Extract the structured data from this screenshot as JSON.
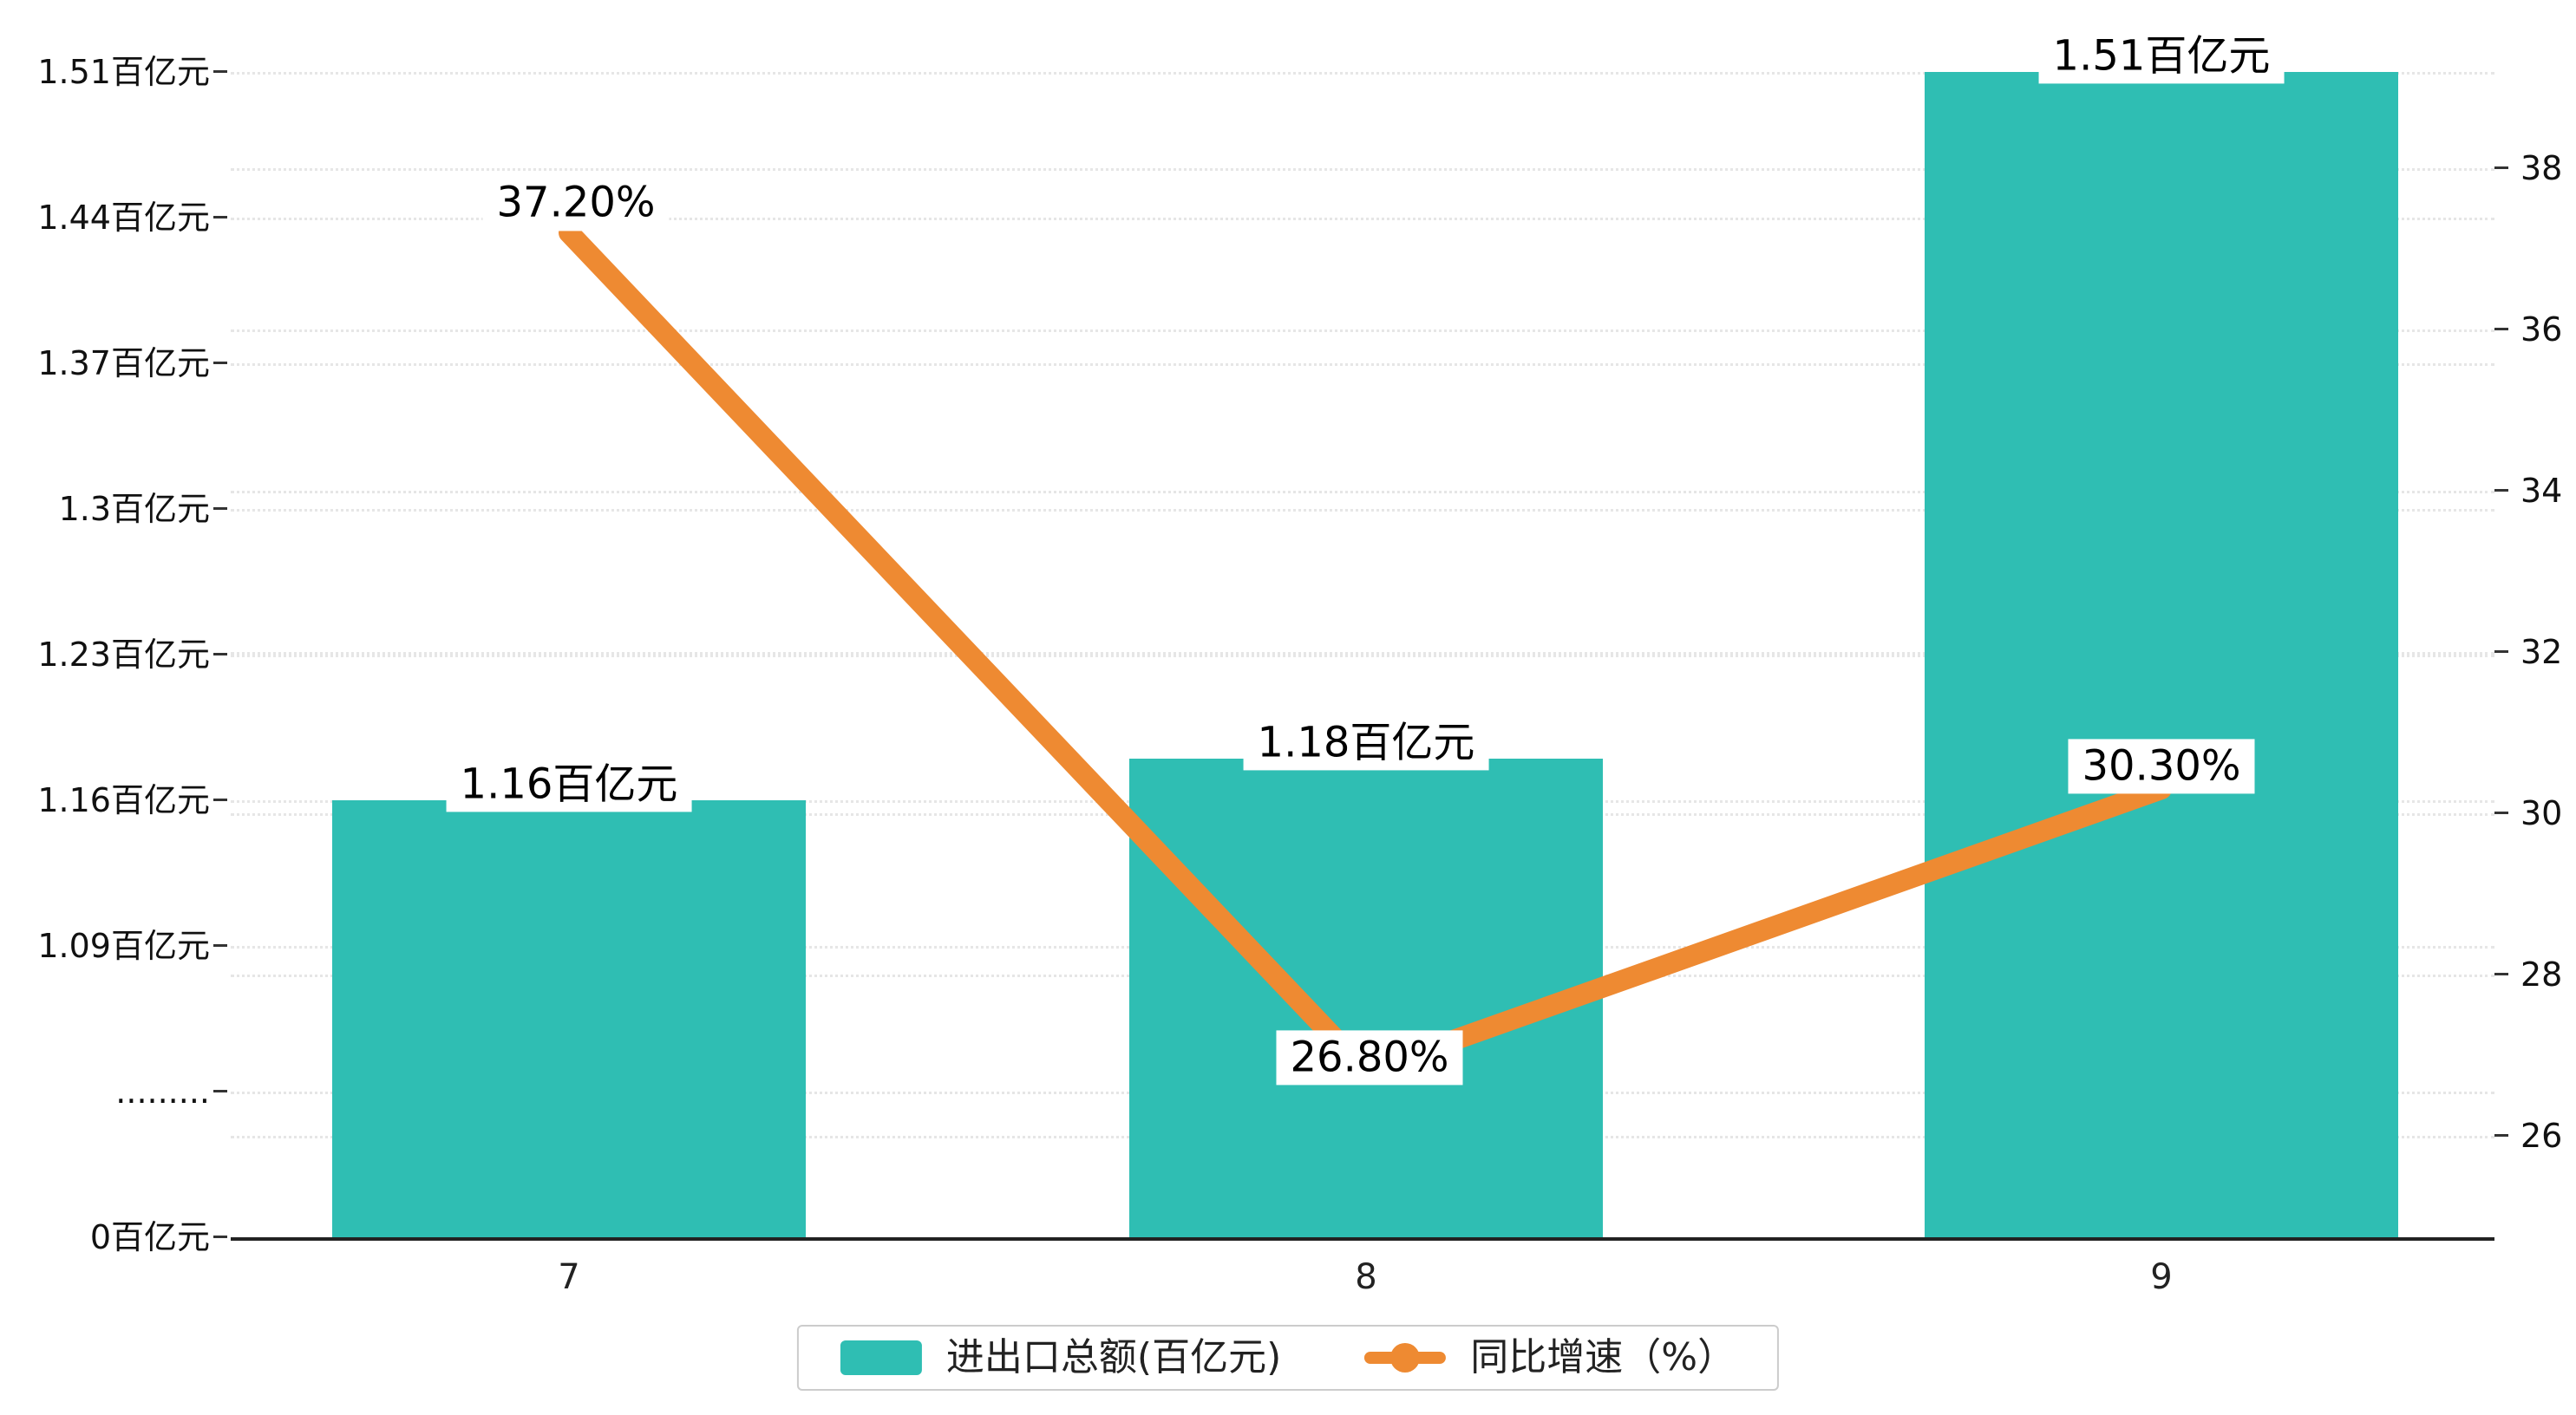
{
  "chart_data": {
    "type": "bar",
    "subtype": "bar+line combo, dual y-axis",
    "categories": [
      "7",
      "8",
      "9"
    ],
    "series": [
      {
        "name": "进出口总额(百亿元)",
        "type": "bar",
        "axis": "left",
        "values": [
          1.16,
          1.18,
          1.51
        ],
        "labels": [
          "1.16百亿元",
          "1.18百亿元",
          "1.51百亿元"
        ],
        "color": "#2fbeb3"
      },
      {
        "name": "同比增速（%）",
        "type": "line",
        "axis": "right",
        "values": [
          37.2,
          26.8,
          30.3
        ],
        "labels": [
          "37.20%",
          "26.80%",
          "30.30%"
        ],
        "color": "#ee8a32"
      }
    ],
    "left_axis": {
      "unit": "百亿元",
      "axis_break": true,
      "tick_labels_bottom_up": [
        "0百亿元",
        ".........",
        "1.09百亿元",
        "1.16百亿元",
        "1.23百亿元",
        "1.3百亿元",
        "1.37百亿元",
        "1.44百亿元",
        "1.51百亿元"
      ]
    },
    "right_axis": {
      "unit": "%",
      "ticks": [
        26,
        28,
        30,
        32,
        34,
        36,
        38
      ]
    },
    "x_axis": {
      "labels": [
        "7",
        "8",
        "9"
      ]
    },
    "legend": {
      "items": [
        {
          "label": "进出口总额(百亿元)",
          "type": "bar"
        },
        {
          "label": "同比增速（%）",
          "type": "line"
        }
      ],
      "position": "bottom-center"
    },
    "grid": {
      "style": "dotted",
      "on": true
    }
  },
  "colors": {
    "bar": "#2fbeb3",
    "line": "#ee8a32",
    "axis": "#222222",
    "gridline": "#e6e6e6",
    "label_bg": "#ffffff"
  }
}
